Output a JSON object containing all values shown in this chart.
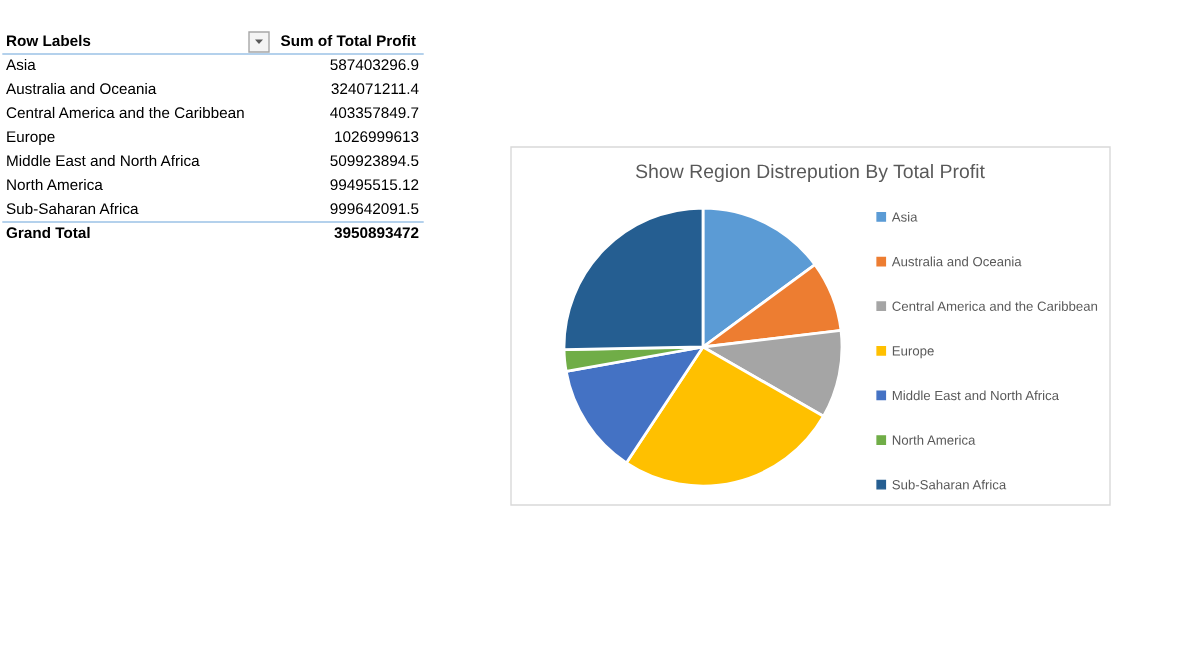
{
  "chart_data": [
    {
      "type": "other",
      "categories": [
        "Asia",
        "Australia and Oceania",
        "Central America and the Caribbean",
        "Europe",
        "Middle East and North Africa",
        "North America",
        "Sub-Saharan Africa"
      ],
      "values": [
        587403296.9,
        324071211.4,
        403357849.7,
        1026999613,
        509923894.5,
        99495515.12,
        999642091.5
      ],
      "data_labels": true,
      "totals": [
        "3950893472"
      ],
      "annotations": [
        "Row Labels",
        "Sum of Total Profit",
        "Grand Total"
      ]
    },
    {
      "type": "pie",
      "title": "Show Region Distrepution By Total Profit",
      "categories": [
        "Asia",
        "Australia and Oceania",
        "Central America and the Caribbean",
        "Europe",
        "Middle East and North Africa",
        "North America",
        "Sub-Saharan Africa"
      ],
      "values": [
        14.9,
        8.2,
        10.2,
        26.0,
        12.9,
        2.5,
        25.3
      ],
      "colors": [
        "#5b9bd5",
        "#ed7d31",
        "#a5a5a5",
        "#ffc000",
        "#4472c4",
        "#70ad47",
        "#255e91"
      ],
      "legend": "right"
    }
  ]
}
